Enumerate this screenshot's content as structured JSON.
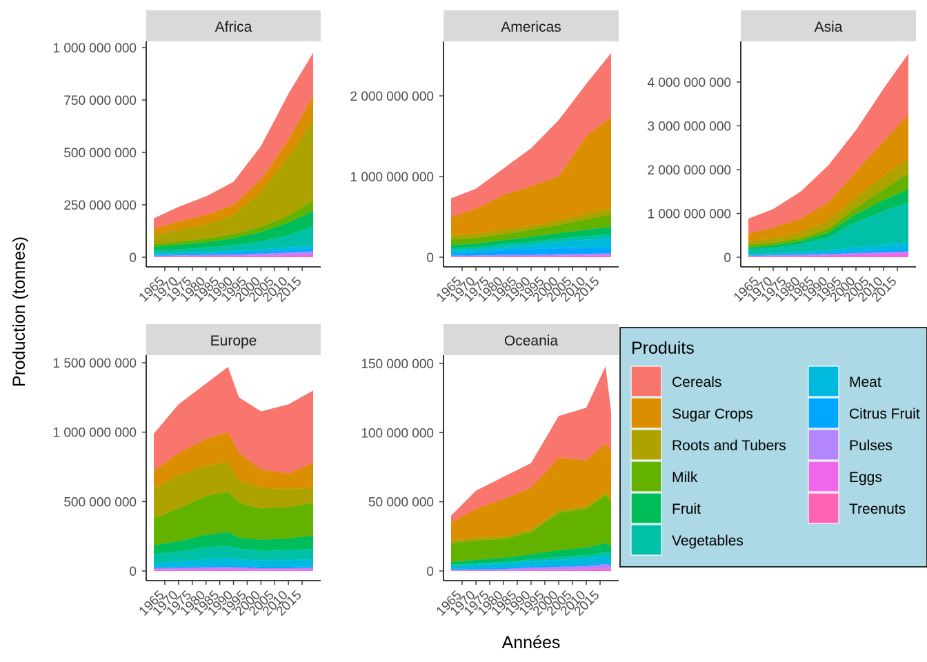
{
  "chart_data": {
    "type": "area",
    "stacked": true,
    "facet_by": "region",
    "xlabel": "Années",
    "ylabel": "Production (tonnes)",
    "x_ticks": [
      1965,
      1970,
      1975,
      1980,
      1985,
      1990,
      1995,
      2000,
      2005,
      2010,
      2015
    ],
    "xlim": [
      1961,
      2019
    ],
    "legend": {
      "title": "Produits",
      "placement": "bottom-right",
      "columns": 2,
      "items": [
        {
          "name": "Cereals",
          "color": "#F8766D"
        },
        {
          "name": "Sugar Crops",
          "color": "#DB8E00"
        },
        {
          "name": "Roots and Tubers",
          "color": "#AEA200"
        },
        {
          "name": "Milk",
          "color": "#64B200"
        },
        {
          "name": "Fruit",
          "color": "#00BD5C"
        },
        {
          "name": "Vegetables",
          "color": "#00C1A7"
        },
        {
          "name": "Meat",
          "color": "#00BADE"
        },
        {
          "name": "Citrus Fruit",
          "color": "#00A6FF"
        },
        {
          "name": "Pulses",
          "color": "#B385FF"
        },
        {
          "name": "Eggs",
          "color": "#EF67EB"
        },
        {
          "name": "Treenuts",
          "color": "#FF63B6"
        }
      ]
    },
    "facets": [
      {
        "name": "Africa",
        "ylim": [
          0,
          1000000000
        ],
        "y_ticks": [
          0,
          250000000,
          500000000,
          750000000,
          1000000000
        ],
        "y_tick_labels": [
          "0",
          "250 000 000",
          "500 000 000",
          "750 000 000",
          "1 000 000 000"
        ],
        "years": [
          1961,
          1970,
          1980,
          1990,
          2000,
          2010,
          2019
        ],
        "cumulative_top": {
          "Treenuts": [
            2000000,
            2000000,
            3000000,
            3000000,
            4000000,
            5000000,
            6000000
          ],
          "Eggs": [
            3000000,
            4000000,
            5000000,
            6000000,
            8000000,
            10000000,
            12000000
          ],
          "Pulses": [
            8000000,
            9000000,
            11000000,
            13000000,
            17000000,
            22000000,
            28000000
          ],
          "Citrus Fruit": [
            11000000,
            13000000,
            16000000,
            20000000,
            26000000,
            33000000,
            40000000
          ],
          "Meat": [
            17000000,
            20000000,
            24000000,
            30000000,
            38000000,
            48000000,
            58000000
          ],
          "Vegetables": [
            30000000,
            37000000,
            45000000,
            57000000,
            75000000,
            105000000,
            148000000
          ],
          "Fruit": [
            50000000,
            60000000,
            72000000,
            90000000,
            120000000,
            165000000,
            220000000
          ],
          "Milk": [
            62000000,
            74000000,
            88000000,
            110000000,
            145000000,
            198000000,
            270000000
          ],
          "Roots and Tubers": [
            105000000,
            130000000,
            155000000,
            200000000,
            310000000,
            480000000,
            650000000
          ],
          "Sugar Crops": [
            135000000,
            170000000,
            200000000,
            250000000,
            370000000,
            560000000,
            770000000
          ],
          "Cereals": [
            185000000,
            240000000,
            290000000,
            360000000,
            530000000,
            780000000,
            975000000
          ]
        }
      },
      {
        "name": "Americas",
        "ylim": [
          0,
          2500000000
        ],
        "y_ticks": [
          0,
          1000000000,
          2000000000
        ],
        "y_tick_labels": [
          "0",
          "1 000 000 000",
          "2 000 000 000"
        ],
        "years": [
          1961,
          1970,
          1980,
          1990,
          2000,
          2010,
          2019
        ],
        "cumulative_top": {
          "Treenuts": [
            3000000,
            3000000,
            4000000,
            5000000,
            6000000,
            8000000,
            10000000
          ],
          "Eggs": [
            8000000,
            9000000,
            12000000,
            14000000,
            18000000,
            22000000,
            26000000
          ],
          "Pulses": [
            20000000,
            22000000,
            27000000,
            30000000,
            36000000,
            42000000,
            48000000
          ],
          "Citrus Fruit": [
            45000000,
            60000000,
            85000000,
            100000000,
            110000000,
            115000000,
            115000000
          ],
          "Meat": [
            80000000,
            95000000,
            125000000,
            150000000,
            185000000,
            215000000,
            240000000
          ],
          "Vegetables": [
            110000000,
            125000000,
            160000000,
            190000000,
            230000000,
            260000000,
            290000000
          ],
          "Fruit": [
            150000000,
            170000000,
            210000000,
            250000000,
            300000000,
            340000000,
            380000000
          ],
          "Milk": [
            220000000,
            240000000,
            285000000,
            340000000,
            400000000,
            470000000,
            530000000
          ],
          "Roots and Tubers": [
            270000000,
            290000000,
            340000000,
            390000000,
            460000000,
            540000000,
            610000000
          ],
          "Sugar Crops": [
            500000000,
            600000000,
            770000000,
            880000000,
            1000000000,
            1500000000,
            1740000000
          ],
          "Cereals": [
            730000000,
            850000000,
            1100000000,
            1350000000,
            1700000000,
            2150000000,
            2530000000
          ]
        }
      },
      {
        "name": "Asia",
        "ylim": [
          0,
          4700000000
        ],
        "y_ticks": [
          0,
          1000000000,
          2000000000,
          3000000000,
          4000000000
        ],
        "y_tick_labels": [
          "0",
          "1 000 000 000",
          "2 000 000 000",
          "3 000 000 000",
          "4 000 000 000"
        ],
        "years": [
          1961,
          1970,
          1980,
          1990,
          2000,
          2010,
          2019
        ],
        "cumulative_top": {
          "Treenuts": [
            3000000,
            4000000,
            6000000,
            8000000,
            12000000,
            16000000,
            20000000
          ],
          "Eggs": [
            15000000,
            20000000,
            30000000,
            45000000,
            70000000,
            85000000,
            100000000
          ],
          "Pulses": [
            35000000,
            42000000,
            55000000,
            70000000,
            95000000,
            110000000,
            130000000
          ],
          "Citrus Fruit": [
            45000000,
            55000000,
            72000000,
            95000000,
            130000000,
            160000000,
            190000000
          ],
          "Meat": [
            70000000,
            85000000,
            115000000,
            160000000,
            230000000,
            290000000,
            340000000
          ],
          "Vegetables": [
            180000000,
            220000000,
            300000000,
            450000000,
            800000000,
            1050000000,
            1250000000
          ],
          "Fruit": [
            220000000,
            270000000,
            370000000,
            560000000,
            980000000,
            1300000000,
            1550000000
          ],
          "Milk": [
            280000000,
            330000000,
            430000000,
            650000000,
            1130000000,
            1550000000,
            1920000000
          ],
          "Roots and Tubers": [
            360000000,
            430000000,
            570000000,
            830000000,
            1380000000,
            1850000000,
            2250000000
          ],
          "Sugar Crops": [
            540000000,
            670000000,
            880000000,
            1250000000,
            1950000000,
            2650000000,
            3250000000
          ],
          "Cereals": [
            880000000,
            1100000000,
            1500000000,
            2100000000,
            2900000000,
            3850000000,
            4650000000
          ]
        }
      },
      {
        "name": "Europe",
        "ylim": [
          0,
          1500000000
        ],
        "y_ticks": [
          0,
          500000000,
          1000000000,
          1500000000
        ],
        "y_tick_labels": [
          "0",
          "500 000 000",
          "1 000 000 000",
          "1 500 000 000"
        ],
        "years": [
          1961,
          1970,
          1980,
          1988,
          1992,
          2000,
          2010,
          2019
        ],
        "cumulative_top": {
          "Treenuts": [
            3000000,
            3000000,
            4000000,
            4000000,
            4000000,
            4000000,
            4000000,
            4000000
          ],
          "Eggs": [
            10000000,
            12000000,
            15000000,
            16000000,
            15000000,
            13000000,
            14000000,
            15000000
          ],
          "Pulses": [
            20000000,
            22000000,
            26000000,
            30000000,
            25000000,
            20000000,
            20000000,
            22000000
          ],
          "Citrus Fruit": [
            26000000,
            30000000,
            35000000,
            40000000,
            35000000,
            30000000,
            30000000,
            32000000
          ],
          "Meat": [
            55000000,
            68000000,
            85000000,
            95000000,
            85000000,
            75000000,
            78000000,
            85000000
          ],
          "Vegetables": [
            120000000,
            140000000,
            170000000,
            180000000,
            160000000,
            145000000,
            150000000,
            160000000
          ],
          "Fruit": [
            185000000,
            215000000,
            260000000,
            280000000,
            240000000,
            225000000,
            235000000,
            255000000
          ],
          "Milk": [
            380000000,
            450000000,
            540000000,
            570000000,
            490000000,
            450000000,
            460000000,
            490000000
          ],
          "Roots and Tubers": [
            590000000,
            690000000,
            760000000,
            780000000,
            650000000,
            600000000,
            590000000,
            600000000
          ],
          "Sugar Crops": [
            720000000,
            850000000,
            950000000,
            1000000000,
            850000000,
            730000000,
            700000000,
            780000000
          ],
          "Cereals": [
            990000000,
            1200000000,
            1350000000,
            1470000000,
            1250000000,
            1150000000,
            1200000000,
            1300000000
          ]
        }
      },
      {
        "name": "Oceania",
        "ylim": [
          0,
          150000000
        ],
        "y_ticks": [
          0,
          50000000,
          100000000,
          150000000
        ],
        "y_tick_labels": [
          "0",
          "50 000 000",
          "100 000 000",
          "150 000 000"
        ],
        "years": [
          1961,
          1970,
          1980,
          1990,
          2000,
          2010,
          2017,
          2019
        ],
        "cumulative_top": {
          "Treenuts": [
            200000,
            200000,
            300000,
            400000,
            600000,
            900000,
            1200000,
            1200000
          ],
          "Eggs": [
            600000,
            700000,
            900000,
            1000000,
            1200000,
            1500000,
            1800000,
            1800000
          ],
          "Pulses": [
            900000,
            1000000,
            1400000,
            2500000,
            3000000,
            3500000,
            5000000,
            4000000
          ],
          "Citrus Fruit": [
            1500000,
            1800000,
            2300000,
            3500000,
            4000000,
            4500000,
            6000000,
            5000000
          ],
          "Meat": [
            3500000,
            4500000,
            5500000,
            7000000,
            8000000,
            9000000,
            11000000,
            10000000
          ],
          "Vegetables": [
            4500000,
            5500000,
            6500000,
            8500000,
            10000000,
            11500000,
            13500000,
            12500000
          ],
          "Fruit": [
            6500000,
            8000000,
            9500000,
            12000000,
            15000000,
            17000000,
            20000000,
            18000000
          ],
          "Milk": [
            20000000,
            22000000,
            23000000,
            28000000,
            42000000,
            45000000,
            55000000,
            50000000
          ],
          "Roots and Tubers": [
            22000000,
            24000000,
            25000000,
            30000000,
            44000000,
            47000000,
            57000000,
            52000000
          ],
          "Sugar Crops": [
            35000000,
            45000000,
            52000000,
            60000000,
            82000000,
            80000000,
            92000000,
            87000000
          ],
          "Cereals": [
            40000000,
            58000000,
            68000000,
            78000000,
            112000000,
            118000000,
            148000000,
            115000000
          ]
        }
      }
    ]
  }
}
